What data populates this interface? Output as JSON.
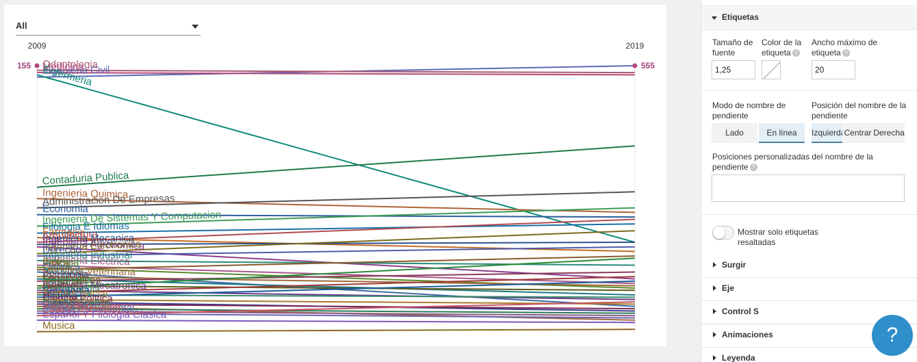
{
  "filter": {
    "value": "All"
  },
  "chart_data": {
    "type": "slope",
    "x_labels": [
      "2009",
      "2019"
    ],
    "start_badge": "155",
    "end_badge": "555",
    "series": [
      {
        "name": "Ingenieria Civil",
        "values": [
          112,
          117
        ],
        "color": "#5b6ab5"
      },
      {
        "name": "Medicina",
        "values": [
          114,
          113
        ],
        "color": "#b5487a"
      },
      {
        "name": "Odontologia",
        "values": [
          115,
          114
        ],
        "color": "#a85c76"
      },
      {
        "name": "Enfermeria",
        "values": [
          113,
          40
        ],
        "color": "#0d8a7a"
      },
      {
        "name": "Contaduria Publica",
        "values": [
          64,
          82
        ],
        "color": "#1f7a4a"
      },
      {
        "name": "Ingenieria Quimica",
        "values": [
          59,
          53
        ],
        "color": "#ad6437"
      },
      {
        "name": "Administracion De Empresas",
        "values": [
          55,
          62
        ],
        "color": "#555555"
      },
      {
        "name": "Economia",
        "values": [
          52,
          51
        ],
        "color": "#2b5d99"
      },
      {
        "name": "Ingenieria De Sistemas Y Computacion",
        "values": [
          47,
          55
        ],
        "color": "#3c9a54"
      },
      {
        "name": "Filologia E Idiomas",
        "values": [
          44,
          48
        ],
        "color": "#1a6fa8"
      },
      {
        "name": "Farmacia",
        "values": [
          42,
          36
        ],
        "color": "#c06a25"
      },
      {
        "name": "Arquitectura",
        "values": [
          40,
          50
        ],
        "color": "#b04a50"
      },
      {
        "name": "Ingenieria Mecanica",
        "values": [
          39,
          40
        ],
        "color": "#2d4f8c"
      },
      {
        "name": "Ingenieria Agronomica",
        "values": [
          38,
          24
        ],
        "color": "#8a3f8c"
      },
      {
        "name": "Ingenieria Electronica",
        "values": [
          35,
          45
        ],
        "color": "#7a6b1e"
      },
      {
        "name": "Derecho",
        "values": [
          34,
          38
        ],
        "color": "#4c5aa8"
      },
      {
        "name": "Ingenieria Industrial",
        "values": [
          32,
          30
        ],
        "color": "#2a8a7a"
      },
      {
        "name": "Ingenieria Electrica",
        "values": [
          30,
          22
        ],
        "color": "#a7588a"
      },
      {
        "name": "Biologia",
        "values": [
          29,
          20
        ],
        "color": "#5a8a2a"
      },
      {
        "name": "Fisica",
        "values": [
          28,
          34
        ],
        "color": "#8a5a2a"
      },
      {
        "name": "Quimica",
        "values": [
          27,
          12
        ],
        "color": "#3a6aa0"
      },
      {
        "name": "Medicina Veterinaria",
        "values": [
          25,
          21
        ],
        "color": "#a06a3a"
      },
      {
        "name": "Zootecnia",
        "values": [
          24,
          17
        ],
        "color": "#1a7a8a"
      },
      {
        "name": "Psicologia",
        "values": [
          23,
          27
        ],
        "color": "#8a3a5a"
      },
      {
        "name": "Matematicas",
        "values": [
          21,
          19
        ],
        "color": "#5a5a1a"
      },
      {
        "name": "Estadistica",
        "values": [
          20,
          33
        ],
        "color": "#2a8a3a"
      },
      {
        "name": "Ingenieria Mecatronica",
        "values": [
          19,
          15
        ],
        "color": "#6a3a8a"
      },
      {
        "name": "Geologia",
        "values": [
          18,
          25
        ],
        "color": "#a03a3a"
      },
      {
        "name": "Antropologia",
        "values": [
          17,
          16
        ],
        "color": "#3a8a6a"
      },
      {
        "name": "Sociologia",
        "values": [
          16,
          23
        ],
        "color": "#1a5a9a"
      },
      {
        "name": "Trabajo Social",
        "values": [
          15,
          13
        ],
        "color": "#aa7a2a"
      },
      {
        "name": "Historia",
        "values": [
          14,
          10
        ],
        "color": "#3a3a8a"
      },
      {
        "name": "Ciencia Politica",
        "values": [
          13,
          11
        ],
        "color": "#7a2a5a"
      },
      {
        "name": "Artes Plasticas",
        "values": [
          12,
          6
        ],
        "color": "#a2693e"
      },
      {
        "name": "Diseño Grafico",
        "values": [
          11,
          9
        ],
        "color": "#2a7a5a"
      },
      {
        "name": "Geografia",
        "values": [
          10,
          8
        ],
        "color": "#8a5a7a"
      },
      {
        "name": "Musica Instrumental",
        "values": [
          9,
          7
        ],
        "color": "#6a62b0"
      },
      {
        "name": "Cine Y Television",
        "values": [
          8,
          14
        ],
        "color": "#c25562"
      },
      {
        "name": "Español Y Filologia Clasica",
        "values": [
          6,
          5
        ],
        "color": "#7a5ab8"
      },
      {
        "name": "Musica",
        "values": [
          1,
          2
        ],
        "color": "#8a6a1e"
      }
    ]
  },
  "panel": {
    "section_labels": {
      "label": "Etiquetas",
      "arise": "Surgir",
      "axis": "Eje",
      "control": "Control S",
      "anim": "Animaciones",
      "legend": "Leyenda"
    },
    "font_size_label": "Tamaño de fuente",
    "font_size_value": "1,25",
    "color_label": "Color de la etiqueta",
    "max_width_label": "Ancho máximo de etiqueta",
    "max_width_value": "20",
    "mode_label": "Modo de nombre de pendiente",
    "mode_side": "Lado",
    "mode_inline": "En línea",
    "pos_label": "Posición del nombre de la pendiente",
    "pos_left": "Izquierda",
    "pos_center": "Centrar",
    "pos_right": "Derecha",
    "custom_label": "Posiciones personalizadas del nombre de la pendiente",
    "toggle_label": "Mostrar solo etiquetas resaltadas"
  },
  "help_fab": "?"
}
